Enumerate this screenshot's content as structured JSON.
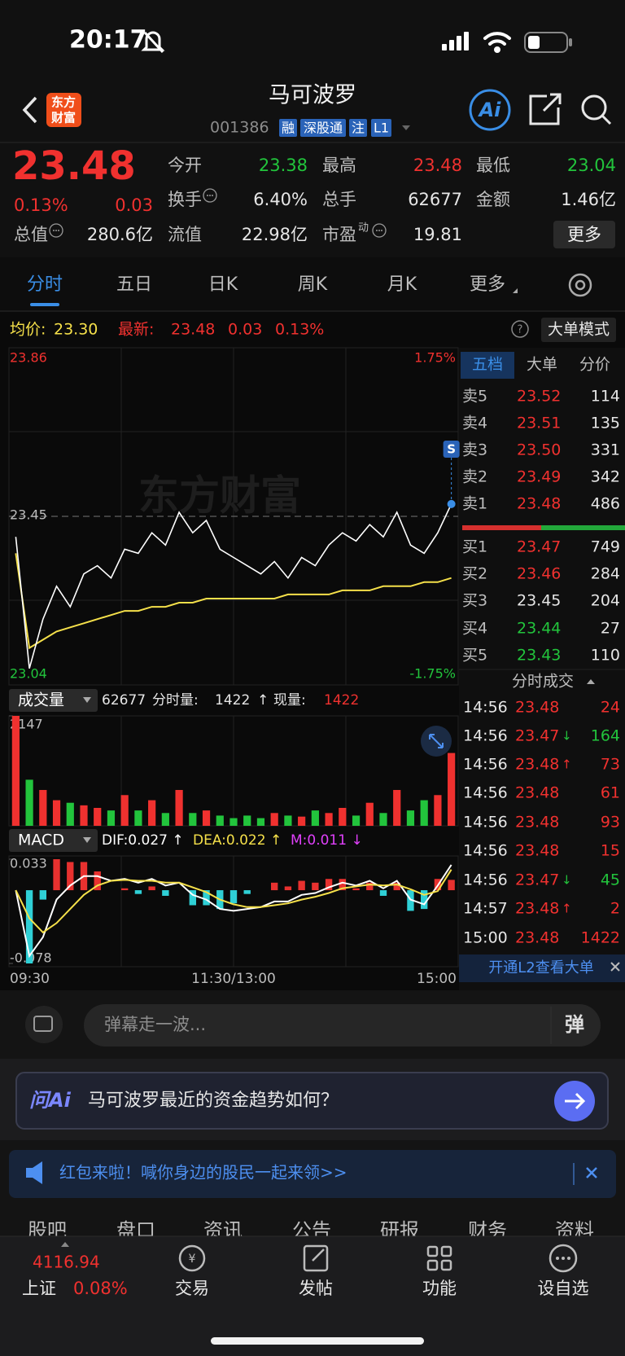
{
  "status": {
    "time": "20:17"
  },
  "nav": {
    "logo_top": "东方",
    "logo_bottom": "财富",
    "title": "马可波罗",
    "code": "001386",
    "tags": [
      "融",
      "深股通",
      "注",
      "L1"
    ],
    "ai": "Ai"
  },
  "quote": {
    "price": "23.48",
    "change_pct": "0.13%",
    "change": "0.03",
    "more": "更多",
    "fields": [
      {
        "label": "今开",
        "value": "23.38",
        "color": "#22c43c"
      },
      {
        "label": "最高",
        "value": "23.48",
        "color": "#f0312f"
      },
      {
        "label": "最低",
        "value": "23.04",
        "color": "#22c43c"
      },
      {
        "label": "换手",
        "value": "6.40%",
        "color": "#e6e6e6",
        "info": true
      },
      {
        "label": "总手",
        "value": "62677",
        "color": "#e6e6e6"
      },
      {
        "label": "金额",
        "value": "1.46亿",
        "color": "#e6e6e6"
      },
      {
        "label": "总值",
        "value": "280.6亿",
        "color": "#e6e6e6",
        "info": true
      },
      {
        "label": "流值",
        "value": "22.98亿",
        "color": "#e6e6e6"
      },
      {
        "label": "市盈",
        "sup": "动",
        "value": "19.81",
        "color": "#e6e6e6",
        "info": true
      }
    ]
  },
  "tabs": {
    "items": [
      "分时",
      "五日",
      "日K",
      "周K",
      "月K",
      "更多"
    ],
    "active": 0
  },
  "info_line": {
    "avg_label": "均价:",
    "avg": "23.30",
    "last_label": "最新:",
    "last": "23.48",
    "change": "0.03",
    "pct": "0.13%",
    "mode_button": "大单模式"
  },
  "chart_data": [
    {
      "type": "line",
      "watermark": "东方财富",
      "signal": "S",
      "ylim": [
        23.04,
        23.86
      ],
      "yticks": [
        23.86,
        23.45,
        23.04
      ],
      "pct_ticks": [
        "1.75%",
        "-1.75%"
      ],
      "series": [
        {
          "name": "最新:",
          "color": "#ffffff",
          "values": [
            23.4,
            23.08,
            23.2,
            23.28,
            23.23,
            23.31,
            23.33,
            23.3,
            23.37,
            23.36,
            23.41,
            23.38,
            23.46,
            23.41,
            23.44,
            23.37,
            23.35,
            23.33,
            23.31,
            23.34,
            23.3,
            23.35,
            23.33,
            23.38,
            23.41,
            23.39,
            23.43,
            23.4,
            23.46,
            23.38,
            23.36,
            23.41,
            23.48
          ]
        },
        {
          "name": "均价:",
          "color": "#f5e04a",
          "values": [
            23.36,
            23.13,
            23.15,
            23.17,
            23.18,
            23.19,
            23.2,
            23.21,
            23.22,
            23.22,
            23.23,
            23.23,
            23.24,
            23.24,
            23.25,
            23.25,
            23.25,
            23.25,
            23.25,
            23.25,
            23.26,
            23.26,
            23.26,
            23.26,
            23.27,
            23.27,
            23.27,
            23.28,
            23.28,
            23.28,
            23.29,
            23.29,
            23.3
          ]
        }
      ],
      "time_labels": [
        "09:30",
        "11:30/13:00",
        "15:00"
      ]
    },
    {
      "type": "bar",
      "title": "成交量",
      "total": "62677",
      "minute_label": "分时量:",
      "minute": "1422",
      "minute_arrow": "↑",
      "now_label": "现量:",
      "now": "1422",
      "ylim": [
        0,
        2147
      ],
      "yticks": [
        2147
      ],
      "up_color": "#f0312f",
      "down_color": "#22c43c",
      "values": [
        2147,
        900,
        700,
        500,
        450,
        400,
        350,
        300,
        600,
        300,
        500,
        250,
        700,
        250,
        300,
        200,
        150,
        200,
        150,
        250,
        200,
        180,
        300,
        250,
        350,
        200,
        450,
        250,
        700,
        300,
        500,
        600,
        1422
      ]
    },
    {
      "type": "macd",
      "title": "MACD",
      "ylim": [
        -0.078,
        0.033
      ],
      "yticks": [
        0.033,
        -0.078
      ],
      "series": [
        {
          "name": "DIF:0.027 ↑",
          "color": "#ffffff",
          "values": [
            0.0,
            -0.07,
            -0.05,
            -0.01,
            0.005,
            0.015,
            0.015,
            0.01,
            0.012,
            0.008,
            0.012,
            0.005,
            0.008,
            -0.005,
            -0.01,
            -0.02,
            -0.022,
            -0.02,
            -0.018,
            -0.012,
            -0.012,
            -0.005,
            -0.003,
            0.003,
            0.008,
            0.005,
            0.01,
            0.002,
            0.01,
            -0.01,
            -0.015,
            0.005,
            0.027
          ]
        },
        {
          "name": "DEA:0.022 ↑",
          "color": "#f5e04a",
          "values": [
            0.0,
            -0.03,
            -0.045,
            -0.035,
            -0.02,
            -0.005,
            0.005,
            0.01,
            0.011,
            0.01,
            0.01,
            0.008,
            0.008,
            0.003,
            -0.002,
            -0.01,
            -0.015,
            -0.018,
            -0.018,
            -0.016,
            -0.014,
            -0.01,
            -0.007,
            -0.003,
            0.002,
            0.004,
            0.006,
            0.005,
            0.006,
            0.001,
            -0.005,
            -0.001,
            0.022
          ]
        },
        {
          "name": "M:0.011 ↓",
          "color": "#e040fb",
          "up_color": "#e8312f",
          "down_color": "#2fd0d6",
          "values": [
            0,
            -0.078,
            -0.01,
            0.033,
            0.03,
            0.03,
            0.02,
            0.0,
            0.002,
            -0.004,
            0.004,
            -0.006,
            0,
            -0.016,
            -0.016,
            -0.02,
            -0.014,
            -0.004,
            0,
            0.008,
            0.004,
            0.01,
            0.008,
            0.012,
            0.012,
            0.002,
            0.008,
            -0.006,
            0.008,
            -0.022,
            -0.02,
            0.012,
            0.011
          ]
        }
      ]
    }
  ],
  "book": {
    "tabs": [
      "五档",
      "大单",
      "分价"
    ],
    "asks": [
      {
        "label": "卖5",
        "price": "23.52",
        "volume": "114",
        "color": "#f0312f"
      },
      {
        "label": "卖4",
        "price": "23.51",
        "volume": "135",
        "color": "#f0312f"
      },
      {
        "label": "卖3",
        "price": "23.50",
        "volume": "331",
        "color": "#f0312f"
      },
      {
        "label": "卖2",
        "price": "23.49",
        "volume": "342",
        "color": "#f0312f"
      },
      {
        "label": "卖1",
        "price": "23.48",
        "volume": "486",
        "color": "#f0312f"
      }
    ],
    "bids": [
      {
        "label": "买1",
        "price": "23.47",
        "volume": "749",
        "color": "#f0312f"
      },
      {
        "label": "买2",
        "price": "23.46",
        "volume": "284",
        "color": "#f0312f"
      },
      {
        "label": "买3",
        "price": "23.45",
        "volume": "204",
        "color": "#e6e6e6"
      },
      {
        "label": "买4",
        "price": "23.44",
        "volume": "27",
        "color": "#22c43c"
      },
      {
        "label": "买5",
        "price": "23.43",
        "volume": "110",
        "color": "#22c43c"
      }
    ],
    "trades_title": "分时成交",
    "trades": [
      {
        "time": "14:56",
        "price": "23.48",
        "volume": "24",
        "vcolor": "#f0312f"
      },
      {
        "time": "14:56",
        "price": "23.47",
        "arrow": "↓",
        "volume": "164",
        "vcolor": "#22c43c"
      },
      {
        "time": "14:56",
        "price": "23.48",
        "arrow": "↑",
        "volume": "73",
        "vcolor": "#f0312f"
      },
      {
        "time": "14:56",
        "price": "23.48",
        "volume": "61",
        "vcolor": "#f0312f"
      },
      {
        "time": "14:56",
        "price": "23.48",
        "volume": "93",
        "vcolor": "#f0312f"
      },
      {
        "time": "14:56",
        "price": "23.48",
        "volume": "15",
        "vcolor": "#f0312f"
      },
      {
        "time": "14:56",
        "price": "23.47",
        "arrow": "↓",
        "volume": "45",
        "vcolor": "#22c43c"
      },
      {
        "time": "14:57",
        "price": "23.48",
        "arrow": "↑",
        "volume": "2",
        "vcolor": "#f0312f"
      },
      {
        "time": "15:00",
        "price": "23.48",
        "volume": "1422",
        "vcolor": "#f0312f"
      }
    ],
    "l2": "开通L2查看大单"
  },
  "comment": {
    "placeholder": "弹幕走一波...",
    "danmu": "弹"
  },
  "ask_ai": {
    "brand": "问Ai",
    "question": "马可波罗最近的资金趋势如何？"
  },
  "banner": {
    "text": "红包来啦！喊你身边的股民一起来领>>"
  },
  "sub_tabs": [
    "股吧",
    "盘口",
    "资讯",
    "公告",
    "研报",
    "财务",
    "资料"
  ],
  "bottom_nav": {
    "index_value": "4116.94",
    "index_name": "上证",
    "index_change": "0.08%",
    "items": [
      "交易",
      "发帖",
      "功能",
      "设自选"
    ]
  }
}
